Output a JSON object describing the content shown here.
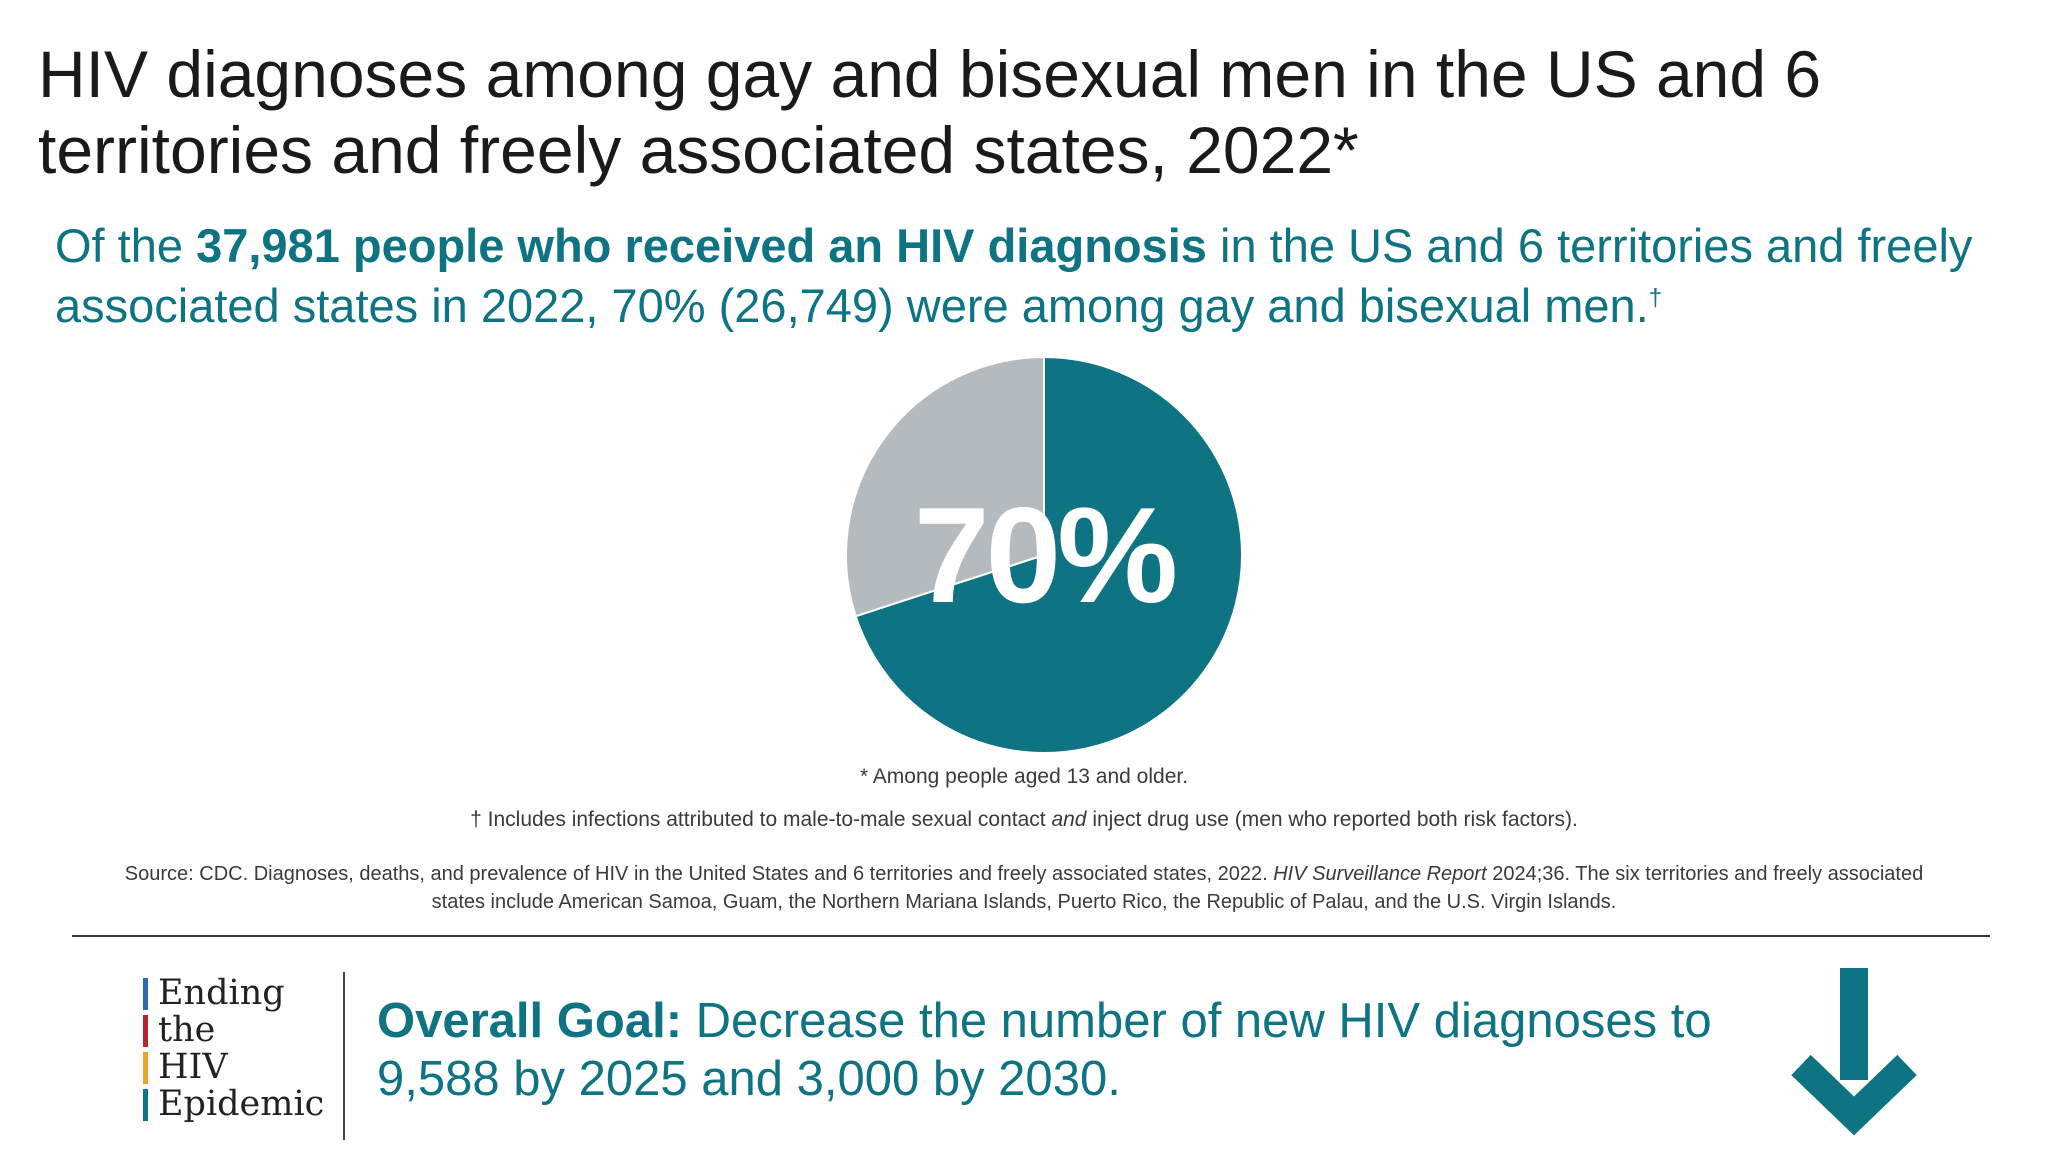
{
  "title": "HIV diagnoses among gay and bisexual men in the US and 6 territories and freely associated states, 2022*",
  "subtitle": {
    "prefix": "Of the ",
    "bold": "37,981 people who received an HIV diagnosis",
    "suffix": " in the US and 6 territories and freely associated states in 2022, 70% (26,749) were among gay and bisexual men.",
    "dagger": "†"
  },
  "colors": {
    "teal": "#0e7382",
    "gray": "#b5babf",
    "ete_bar_1": "#2b6cb0",
    "ete_bar_2": "#b5262e",
    "ete_bar_3": "#e9a72a",
    "ete_bar_4": "#0e7382"
  },
  "chart_data": {
    "type": "pie",
    "slices": [
      {
        "value": 70,
        "color": "#0e7382"
      },
      {
        "value": 30,
        "color": "#b5babf"
      }
    ],
    "center_label": "70%"
  },
  "notes": {
    "asterisk": "* Among people aged 13 and older.",
    "dagger_prefix": "† Includes infections attributed to male-to-male sexual contact ",
    "dagger_italic": "and",
    "dagger_suffix": " inject drug use (men who reported both risk factors)."
  },
  "source": {
    "prefix": "Source: CDC. Diagnoses, deaths, and prevalence of HIV in the United States and 6 territories and freely associated states, 2022. ",
    "italic": "HIV Surveillance Report",
    "suffix": " 2024;36. The six territories and freely associated states include American Samoa, Guam, the Northern Mariana Islands, Puerto Rico, the Republic of Palau, and the U.S. Virgin Islands."
  },
  "logo": {
    "words": [
      "Ending",
      "the",
      "HIV",
      "Epidemic"
    ]
  },
  "goal": {
    "bold": "Overall Goal:",
    "text": " Decrease the number of new HIV diagnoses to 9,588 by 2025 and 3,000 by 2030."
  },
  "icons": {
    "goal_arrow": "arrow-down-icon"
  }
}
